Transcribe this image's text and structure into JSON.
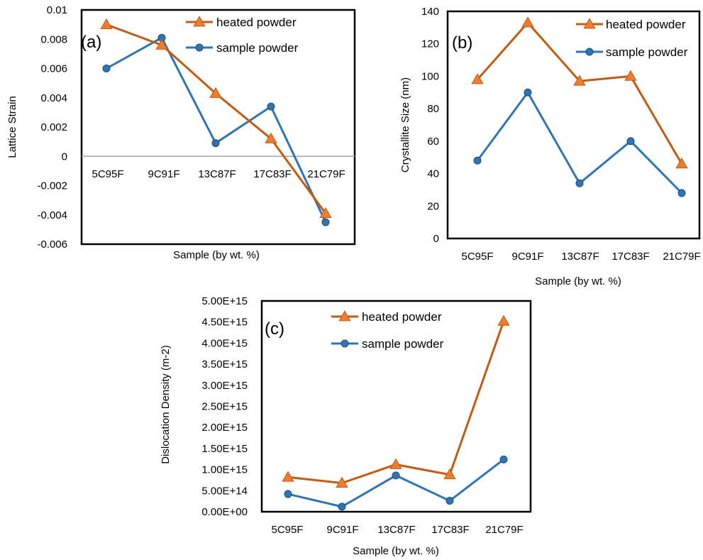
{
  "colors": {
    "heated": "#c55a11",
    "heated_marker": "#ed7d31",
    "sample": "#2e75b6",
    "sample_marker": "#2e75b6",
    "frame": "#000000",
    "zero_line": "#a6a6a6"
  },
  "chart_data": [
    {
      "type": "line",
      "panel_label": "(a)",
      "categories": [
        "5C95F",
        "9C91F",
        "13C87F",
        "17C83F",
        "21C79F"
      ],
      "series": [
        {
          "name": "heated powder",
          "marker": "triangle",
          "values": [
            0.009,
            0.0076,
            0.0043,
            0.0012,
            -0.0039
          ]
        },
        {
          "name": "sample powder",
          "marker": "circle",
          "values": [
            0.006,
            0.0081,
            0.0009,
            0.0034,
            -0.0045
          ]
        }
      ],
      "ylabel": "Lattice Strain",
      "xlabel": "Sample (by wt. %)",
      "ylim": [
        -0.006,
        0.01
      ],
      "yticks": [
        "0.01",
        "0.008",
        "0.006",
        "0.004",
        "0.002",
        "0",
        "-0.002",
        "-0.004",
        "-0.006"
      ],
      "legend": "top-right",
      "grid": false
    },
    {
      "type": "line",
      "panel_label": "(b)",
      "categories": [
        "5C95F",
        "9C91F",
        "13C87F",
        "17C83F",
        "21C79F"
      ],
      "series": [
        {
          "name": "heated powder",
          "marker": "triangle",
          "values": [
            98,
            133,
            97,
            100,
            46
          ]
        },
        {
          "name": "sample powder",
          "marker": "circle",
          "values": [
            48,
            90,
            34,
            60,
            28
          ]
        }
      ],
      "ylabel": "Crystallite Size (nm)",
      "xlabel": "Sample (by wt. %)",
      "ylim": [
        0,
        140
      ],
      "yticks": [
        "140",
        "120",
        "100",
        "80",
        "60",
        "40",
        "20",
        "0"
      ],
      "legend": "top-right",
      "grid": false
    },
    {
      "type": "line",
      "panel_label": "(c)",
      "categories": [
        "5C95F",
        "9C91F",
        "13C87F",
        "17C83F",
        "21C79F"
      ],
      "series": [
        {
          "name": "heated powder",
          "marker": "triangle",
          "values": [
            820000000000000.0,
            680000000000000.0,
            1120000000000000.0,
            880000000000000.0,
            4520000000000000.0
          ]
        },
        {
          "name": "sample powder",
          "marker": "circle",
          "values": [
            420000000000000.0,
            120000000000000.0,
            860000000000000.0,
            260000000000000.0,
            1240000000000000.0
          ]
        }
      ],
      "ylabel": "Dislocation Density (m-2)",
      "xlabel": "Sample (by wt. %)",
      "ylim": [
        0,
        5000000000000000.0
      ],
      "yticks": [
        "5.00E+15",
        "4.50E+15",
        "4.00E+15",
        "3.50E+15",
        "3.00E+15",
        "2.50E+15",
        "2.00E+15",
        "1.50E+15",
        "1.00E+15",
        "5.00E+14",
        "0.00E+00"
      ],
      "legend": "top-left",
      "grid": false
    }
  ]
}
